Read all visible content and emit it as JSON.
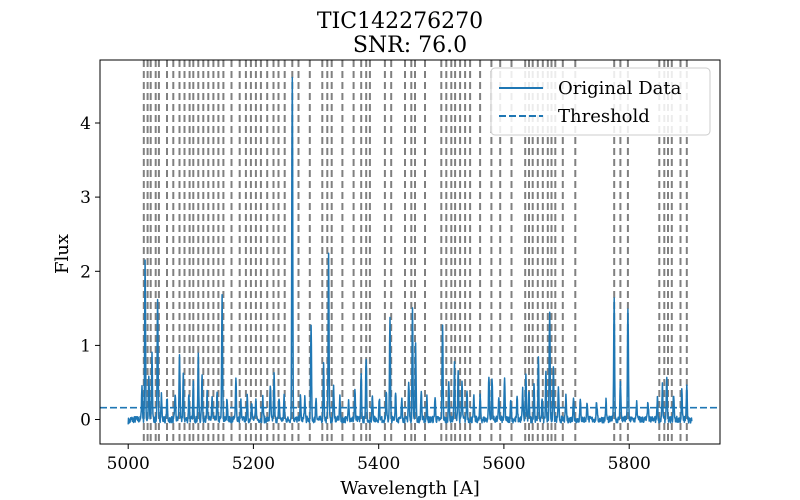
{
  "chart_data": {
    "type": "line",
    "title": "TIC142276270",
    "subtitle": "SNR: 76.0",
    "xlabel": "Wavelength [A]",
    "ylabel": "Flux",
    "xlim": [
      4955,
      5945
    ],
    "ylim": [
      -0.33,
      4.85
    ],
    "xticks": [
      5000,
      5200,
      5400,
      5600,
      5800
    ],
    "yticks": [
      0,
      1,
      2,
      3,
      4
    ],
    "grid": false,
    "legend_position": "upper right",
    "threshold": 0.16,
    "colors": {
      "series": "#1f77b4",
      "vlines": "#808080"
    },
    "series": [
      {
        "name": "Original Data",
        "style": "solid",
        "baseline": 0.0,
        "x_start": 5000,
        "x_end": 5900,
        "peaks": [
          [
            5022,
            0.45
          ],
          [
            5027,
            2.15
          ],
          [
            5033,
            0.55
          ],
          [
            5038,
            0.9
          ],
          [
            5047,
            1.65
          ],
          [
            5053,
            0.35
          ],
          [
            5062,
            0.3
          ],
          [
            5075,
            0.35
          ],
          [
            5082,
            0.9
          ],
          [
            5088,
            0.6
          ],
          [
            5097,
            0.35
          ],
          [
            5104,
            0.5
          ],
          [
            5112,
            0.85
          ],
          [
            5118,
            0.6
          ],
          [
            5126,
            0.4
          ],
          [
            5134,
            0.3
          ],
          [
            5142,
            0.35
          ],
          [
            5150,
            1.65
          ],
          [
            5158,
            0.3
          ],
          [
            5172,
            0.6
          ],
          [
            5180,
            0.25
          ],
          [
            5190,
            0.3
          ],
          [
            5197,
            0.25
          ],
          [
            5204,
            0.25
          ],
          [
            5215,
            0.3
          ],
          [
            5227,
            0.45
          ],
          [
            5233,
            0.6
          ],
          [
            5241,
            0.3
          ],
          [
            5249,
            0.3
          ],
          [
            5262,
            4.65
          ],
          [
            5275,
            0.3
          ],
          [
            5282,
            0.3
          ],
          [
            5292,
            1.25
          ],
          [
            5300,
            0.3
          ],
          [
            5312,
            0.75
          ],
          [
            5320,
            2.2
          ],
          [
            5328,
            0.45
          ],
          [
            5338,
            0.3
          ],
          [
            5352,
            0.3
          ],
          [
            5362,
            0.4
          ],
          [
            5372,
            0.6
          ],
          [
            5380,
            0.85
          ],
          [
            5390,
            0.35
          ],
          [
            5401,
            0.3
          ],
          [
            5412,
            0.4
          ],
          [
            5418,
            1.35
          ],
          [
            5427,
            0.4
          ],
          [
            5437,
            0.3
          ],
          [
            5448,
            0.5
          ],
          [
            5454,
            1.55
          ],
          [
            5459,
            1.0
          ],
          [
            5468,
            0.4
          ],
          [
            5477,
            0.3
          ],
          [
            5490,
            0.3
          ],
          [
            5502,
            1.3
          ],
          [
            5512,
            0.5
          ],
          [
            5521,
            0.75
          ],
          [
            5527,
            0.7
          ],
          [
            5533,
            0.5
          ],
          [
            5541,
            0.4
          ],
          [
            5552,
            0.3
          ],
          [
            5562,
            0.3
          ],
          [
            5576,
            0.6
          ],
          [
            5581,
            0.55
          ],
          [
            5592,
            0.3
          ],
          [
            5601,
            0.55
          ],
          [
            5611,
            0.3
          ],
          [
            5621,
            0.3
          ],
          [
            5630,
            0.4
          ],
          [
            5635,
            0.6
          ],
          [
            5640,
            0.4
          ],
          [
            5648,
            0.5
          ],
          [
            5655,
            0.8
          ],
          [
            5661,
            0.3
          ],
          [
            5667,
            0.65
          ],
          [
            5673,
            1.45
          ],
          [
            5679,
            0.7
          ],
          [
            5687,
            0.4
          ],
          [
            5699,
            0.3
          ],
          [
            5711,
            0.3
          ],
          [
            5722,
            0.25
          ],
          [
            5733,
            0.25
          ],
          [
            5748,
            0.25
          ],
          [
            5763,
            0.25
          ],
          [
            5776,
            1.6
          ],
          [
            5786,
            0.55
          ],
          [
            5798,
            1.5
          ],
          [
            5812,
            0.25
          ],
          [
            5830,
            0.25
          ],
          [
            5845,
            0.3
          ],
          [
            5853,
            0.45
          ],
          [
            5860,
            0.6
          ],
          [
            5871,
            0.35
          ],
          [
            5884,
            0.4
          ],
          [
            5892,
            0.5
          ]
        ]
      },
      {
        "name": "Threshold",
        "style": "dashed"
      }
    ],
    "vlines": [
      5025,
      5031,
      5036,
      5044,
      5049,
      5062,
      5072,
      5082,
      5090,
      5098,
      5104,
      5112,
      5120,
      5128,
      5136,
      5144,
      5152,
      5165,
      5178,
      5188,
      5196,
      5204,
      5212,
      5222,
      5232,
      5240,
      5250,
      5262,
      5272,
      5290,
      5310,
      5318,
      5325,
      5342,
      5360,
      5372,
      5380,
      5386,
      5410,
      5420,
      5442,
      5452,
      5458,
      5474,
      5500,
      5508,
      5516,
      5522,
      5530,
      5538,
      5546,
      5562,
      5580,
      5594,
      5612,
      5634,
      5640,
      5646,
      5654,
      5662,
      5670,
      5676,
      5682,
      5694,
      5714,
      5776,
      5786,
      5798,
      5848,
      5856,
      5862,
      5868,
      5882,
      5892
    ]
  }
}
